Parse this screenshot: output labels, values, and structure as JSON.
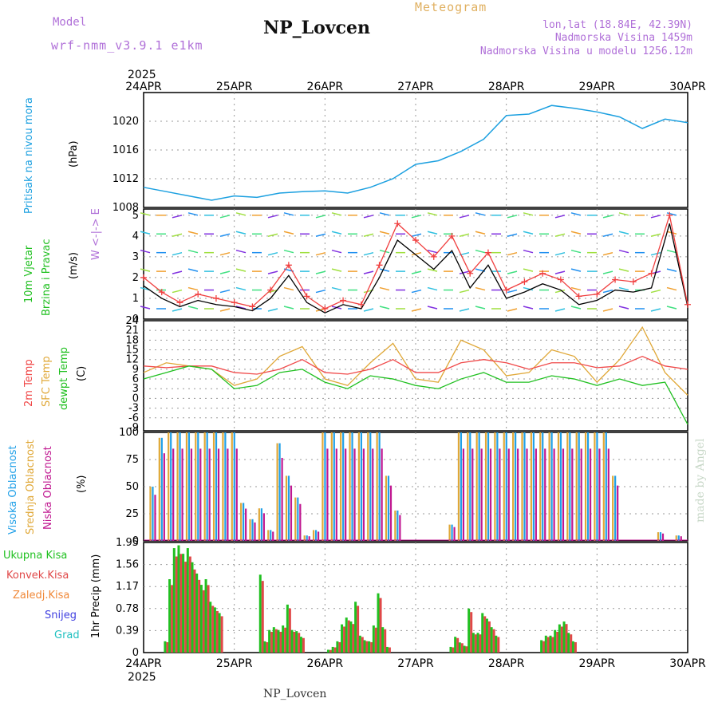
{
  "header": {
    "model_label": "Model",
    "model_value": "wrf-nmm_v3.9.1 e1km",
    "station": "NP_Lovcen",
    "title": "Meteogram",
    "lonlat": "lon,lat (18.84E, 42.39N)",
    "altitude": "Nadmorska Visina 1459m",
    "altitude_model": "Nadmorska Visina u modelu 1256.12m"
  },
  "footer": {
    "station": "NP_Lovcen",
    "watermark": "made by Angel"
  },
  "colors": {
    "pressure": "#1ca0e0",
    "wind_speed": "#000000",
    "wind_gust": "#f04040",
    "temp_2m": "#f04848",
    "temp_sfc": "#e0a838",
    "dewpoint": "#20c020",
    "cloud_high": "#20a0e8",
    "cloud_mid": "#e0a838",
    "cloud_low": "#c01890",
    "precip_total": "#20c020",
    "precip_conv": "#e04848",
    "precip_strat": "#f08838",
    "snow": "#4040e0",
    "hail": "#20c0c0"
  },
  "chart_data": [
    {
      "type": "line",
      "name": "pressure",
      "ylabel_left": "Pritisak na nivou mora",
      "ylabel_unit": "(hPa)",
      "ylim": [
        1008,
        1024
      ],
      "yticks": [
        "1008",
        "1012",
        "1016",
        "1020"
      ],
      "x": [
        0,
        0.25,
        0.5,
        0.75,
        1.0,
        1.25,
        1.5,
        1.75,
        2.0,
        2.25,
        2.5,
        2.75,
        3.0,
        3.25,
        3.5,
        3.75,
        4.0,
        4.25,
        4.5,
        4.75,
        5.0,
        5.25,
        5.5,
        5.75,
        6.0
      ],
      "values": [
        1010.8,
        1010.2,
        1009.6,
        1009.0,
        1009.6,
        1009.4,
        1010.0,
        1010.2,
        1010.3,
        1010.0,
        1010.8,
        1012.0,
        1014.0,
        1014.5,
        1015.8,
        1017.5,
        1020.8,
        1021.0,
        1022.2,
        1021.8,
        1021.3,
        1020.6,
        1019.0,
        1020.3,
        1019.8
      ],
      "grid": true
    },
    {
      "type": "line",
      "name": "wind",
      "ylabel_left_1": "10m Vjetar",
      "ylabel_left_2": "Brzina i Pravac",
      "ylabel_unit": "(m/s)",
      "compass": "W <-|-> E",
      "ylim": [
        0,
        5.3
      ],
      "yticks": [
        "0",
        "1",
        "2",
        "3",
        "4",
        "5"
      ],
      "x": [
        0,
        0.2,
        0.4,
        0.6,
        0.8,
        1.0,
        1.2,
        1.4,
        1.6,
        1.8,
        2.0,
        2.2,
        2.4,
        2.6,
        2.8,
        3.0,
        3.2,
        3.4,
        3.6,
        3.8,
        4.0,
        4.2,
        4.4,
        4.6,
        4.8,
        5.0,
        5.2,
        5.4,
        5.6,
        5.8,
        6.0
      ],
      "speed": [
        1.6,
        1.0,
        0.6,
        0.9,
        0.7,
        0.6,
        0.4,
        1.0,
        2.1,
        0.8,
        0.3,
        0.7,
        0.5,
        2.0,
        3.8,
        3.1,
        2.4,
        3.3,
        1.5,
        2.6,
        1.0,
        1.3,
        1.7,
        1.4,
        0.7,
        0.9,
        1.4,
        1.3,
        1.5,
        4.6,
        0.6
      ],
      "gust": [
        2.0,
        1.3,
        0.8,
        1.2,
        1.0,
        0.8,
        0.6,
        1.4,
        2.6,
        1.1,
        0.5,
        0.9,
        0.7,
        2.6,
        4.6,
        3.8,
        3.0,
        4.0,
        2.2,
        3.2,
        1.4,
        1.8,
        2.2,
        1.9,
        1.1,
        1.2,
        1.9,
        1.8,
        2.2,
        5.0,
        0.7
      ],
      "grid": true
    },
    {
      "type": "line",
      "name": "temperature",
      "ylabel_left_1": "2m Temp",
      "ylabel_left_2": "SFC Temp",
      "ylabel_left_3": "dewpt Temp",
      "ylabel_unit": "(C)",
      "ylim": [
        -10,
        24
      ],
      "yticks": [
        "-9",
        "-6",
        "-3",
        "0",
        "3",
        "6",
        "9",
        "12",
        "15",
        "18",
        "21",
        "24"
      ],
      "x": [
        0,
        0.25,
        0.5,
        0.75,
        1.0,
        1.25,
        1.5,
        1.75,
        2.0,
        2.25,
        2.5,
        2.75,
        3.0,
        3.25,
        3.5,
        3.75,
        4.0,
        4.25,
        4.5,
        4.75,
        5.0,
        5.25,
        5.5,
        5.75,
        6.0
      ],
      "temp_2m": [
        10,
        9.5,
        10,
        10,
        8,
        7.5,
        9,
        12,
        8,
        7.5,
        9,
        12,
        8,
        8,
        11,
        12,
        11,
        9,
        11,
        11,
        9.5,
        10,
        13,
        10,
        9
      ],
      "temp_sfc": [
        8,
        11,
        10,
        9,
        4,
        6,
        13,
        16,
        6,
        4,
        11,
        17,
        6,
        5,
        18,
        15,
        7,
        8,
        15,
        13,
        5,
        12,
        22,
        8,
        1
      ],
      "dewpoint": [
        6,
        8,
        10,
        9,
        3,
        4,
        8,
        9,
        5,
        3,
        7,
        6,
        4,
        3,
        6,
        8,
        5,
        5,
        7,
        6,
        4,
        6,
        4,
        5,
        -8
      ],
      "grid": true
    },
    {
      "type": "bar",
      "name": "clouds",
      "ylabel_left_1": "Visoka Oblacnost",
      "ylabel_left_2": "Srednja Oblacnost",
      "ylabel_left_3": "Niska Oblacnost",
      "ylabel_unit": "(%)",
      "ylim": [
        0,
        100
      ],
      "yticks": [
        "0",
        "25",
        "50",
        "75",
        "100"
      ],
      "x": [
        0.1,
        0.2,
        0.3,
        0.4,
        0.5,
        0.6,
        0.7,
        0.8,
        0.9,
        1.0,
        1.1,
        1.2,
        1.3,
        1.4,
        1.5,
        1.6,
        1.7,
        1.8,
        1.9,
        2.0,
        2.1,
        2.2,
        2.3,
        2.4,
        2.5,
        2.6,
        2.7,
        2.8,
        2.9,
        3.0,
        3.1,
        3.2,
        3.3,
        3.4,
        3.5,
        3.6,
        3.7,
        3.8,
        3.9,
        4.0,
        4.1,
        4.2,
        4.3,
        4.4,
        4.5,
        4.6,
        4.7,
        4.8,
        4.9,
        5.0,
        5.1,
        5.2,
        5.3,
        5.4,
        5.5,
        5.6,
        5.7,
        5.8,
        5.9,
        6.0
      ],
      "values": [
        50,
        95,
        100,
        100,
        100,
        100,
        100,
        100,
        100,
        100,
        35,
        20,
        30,
        10,
        90,
        60,
        40,
        5,
        10,
        100,
        100,
        100,
        100,
        100,
        100,
        100,
        60,
        28,
        0,
        0,
        0,
        0,
        0,
        15,
        100,
        100,
        100,
        100,
        100,
        100,
        100,
        100,
        100,
        100,
        100,
        100,
        100,
        100,
        100,
        100,
        100,
        60,
        0,
        0,
        0,
        0,
        8,
        0,
        5,
        0
      ],
      "grid": true
    },
    {
      "type": "bar",
      "name": "precip",
      "ylabel_left_1": "Ukupna Kisa",
      "ylabel_left_2": "Konvek.Kisa",
      "ylabel_left_3": "Zaledj.Kisa",
      "ylabel_left_4": "Snijeg",
      "ylabel_left_5": "Grad",
      "ylabel_unit": "1hr Precip (mm)",
      "ylim": [
        0,
        1.95
      ],
      "yticks": [
        "0",
        "0.39",
        "0.78",
        "1.17",
        "1.56",
        "1.95"
      ],
      "x": [
        0.25,
        0.3,
        0.35,
        0.4,
        0.45,
        0.5,
        0.55,
        0.6,
        0.65,
        0.7,
        0.75,
        0.8,
        0.85,
        1.3,
        1.35,
        1.4,
        1.45,
        1.5,
        1.55,
        1.6,
        1.65,
        1.7,
        1.75,
        2.05,
        2.1,
        2.15,
        2.2,
        2.25,
        2.3,
        2.35,
        2.4,
        2.45,
        2.5,
        2.55,
        2.6,
        2.65,
        2.7,
        3.4,
        3.45,
        3.5,
        3.55,
        3.6,
        3.65,
        3.7,
        3.75,
        3.8,
        3.85,
        3.9,
        4.4,
        4.45,
        4.5,
        4.55,
        4.6,
        4.65,
        4.7,
        4.75,
        4.8
      ],
      "values": [
        0.2,
        1.3,
        1.85,
        1.9,
        1.75,
        1.85,
        1.6,
        1.4,
        1.2,
        1.3,
        0.9,
        0.8,
        0.7,
        1.38,
        0.2,
        0.4,
        0.45,
        0.4,
        0.48,
        0.85,
        0.4,
        0.38,
        0.28,
        0.05,
        0.1,
        0.2,
        0.5,
        0.62,
        0.55,
        0.9,
        0.3,
        0.22,
        0.2,
        0.48,
        1.05,
        0.45,
        0.1,
        0.1,
        0.28,
        0.18,
        0.12,
        0.78,
        0.35,
        0.35,
        0.7,
        0.6,
        0.45,
        0.3,
        0.22,
        0.3,
        0.3,
        0.4,
        0.5,
        0.55,
        0.35,
        0.2,
        0.0
      ],
      "grid": true
    }
  ],
  "xaxis": {
    "year": "2025",
    "ticks": [
      "24APR",
      "25APR",
      "26APR",
      "27APR",
      "28APR",
      "29APR",
      "30APR"
    ]
  }
}
